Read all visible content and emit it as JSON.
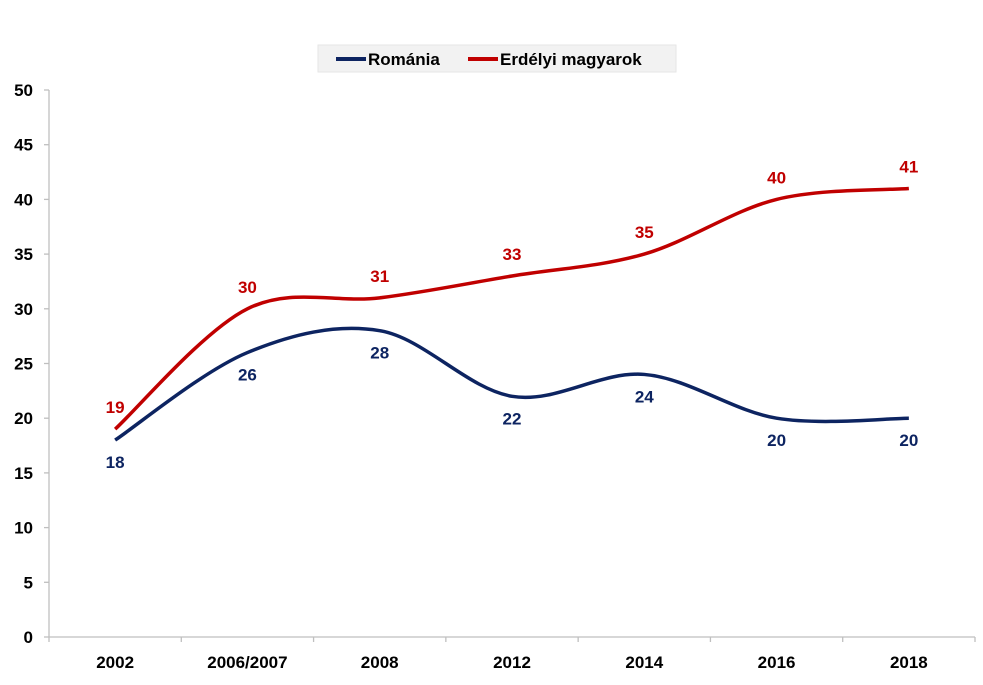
{
  "chart_data": {
    "type": "line",
    "title": "",
    "xlabel": "",
    "ylabel": "",
    "categories": [
      "2002",
      "2006/2007",
      "2008",
      "2012",
      "2014",
      "2016",
      "2018"
    ],
    "ylim": [
      0,
      50
    ],
    "yticks": [
      0,
      5,
      10,
      15,
      20,
      25,
      30,
      35,
      40,
      45,
      50
    ],
    "grid": false,
    "legend_position": "top-center",
    "smooth": true,
    "series": [
      {
        "name": "Románia",
        "color": "#0d2461",
        "values": [
          18,
          26,
          28,
          22,
          24,
          20,
          20
        ],
        "label_position": "below"
      },
      {
        "name": "Erdélyi magyarok",
        "color": "#c00000",
        "values": [
          19,
          30,
          31,
          33,
          35,
          40,
          41
        ],
        "label_position": "above"
      }
    ]
  }
}
